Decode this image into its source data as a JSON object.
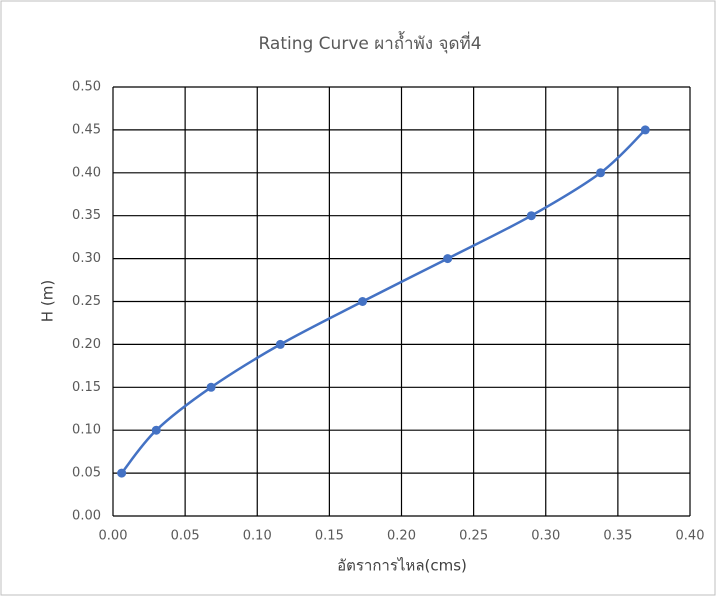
{
  "chart_data": {
    "type": "line",
    "title": "Rating Curve ผาถ้ำพัง จุดที่4",
    "x_label": "อัตราการไหล(cms)",
    "y_label": "H (m)",
    "x": [
      0.006,
      0.03,
      0.068,
      0.116,
      0.173,
      0.232,
      0.29,
      0.338,
      0.369
    ],
    "values": [
      0.05,
      0.1,
      0.15,
      0.2,
      0.25,
      0.3,
      0.35,
      0.4,
      0.45
    ],
    "color": "#4472c4",
    "smooth": true,
    "markers": true,
    "grid": true,
    "xlim": [
      0,
      0.4
    ],
    "xticks": [
      {
        "value": 0,
        "label": "0.00"
      },
      {
        "value": 0.05,
        "label": "0.05"
      },
      {
        "value": 0.1,
        "label": "0.10"
      },
      {
        "value": 0.15,
        "label": "0.15"
      },
      {
        "value": 0.2,
        "label": "0.20"
      },
      {
        "value": 0.25,
        "label": "0.25"
      },
      {
        "value": 0.3,
        "label": "0.30"
      },
      {
        "value": 0.35,
        "label": "0.35"
      },
      {
        "value": 0.4,
        "label": "0.40"
      }
    ],
    "ylim": [
      0,
      0.5
    ],
    "yticks": [
      {
        "value": 0,
        "label": "0.00"
      },
      {
        "value": 0.05,
        "label": "0.05"
      },
      {
        "value": 0.1,
        "label": "0.10"
      },
      {
        "value": 0.15,
        "label": "0.15"
      },
      {
        "value": 0.2,
        "label": "0.20"
      },
      {
        "value": 0.25,
        "label": "0.25"
      },
      {
        "value": 0.3,
        "label": "0.30"
      },
      {
        "value": 0.35,
        "label": "0.35"
      },
      {
        "value": 0.4,
        "label": "0.40"
      },
      {
        "value": 0.45,
        "label": "0.45"
      },
      {
        "value": 0.5,
        "label": "0.50"
      }
    ]
  }
}
